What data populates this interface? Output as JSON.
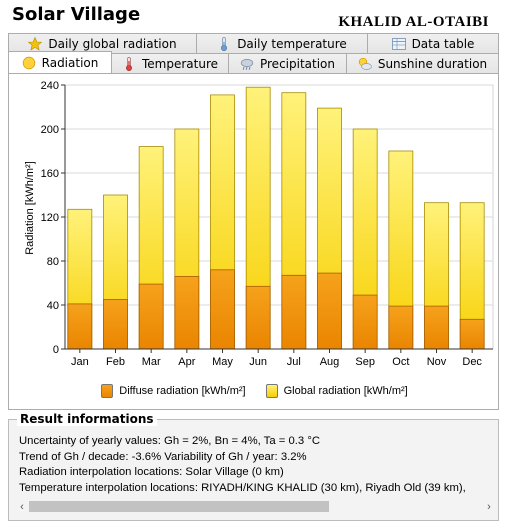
{
  "app": {
    "title": "Solar Village",
    "author": "KHALID AL-OTAIBI"
  },
  "tabs_row1": [
    {
      "label": "Daily global radiation",
      "icon": "star-icon"
    },
    {
      "label": "Daily temperature",
      "icon": "thermometer-icon"
    },
    {
      "label": "Data table",
      "icon": "table-icon"
    }
  ],
  "tabs_row2": [
    {
      "label": "Radiation",
      "icon": "sun-icon",
      "active": true
    },
    {
      "label": "Temperature",
      "icon": "thermometer-icon"
    },
    {
      "label": "Precipitation",
      "icon": "cloud-rain-icon"
    },
    {
      "label": "Sunshine duration",
      "icon": "sun-cloud-icon"
    }
  ],
  "chart_data": {
    "type": "bar",
    "ylabel": "Radiation [kWh/m²]",
    "ylim": [
      0,
      240
    ],
    "yticks": [
      0,
      40,
      80,
      120,
      160,
      200,
      240
    ],
    "grid": true,
    "legend_placement": "bottom",
    "categories": [
      "Jan",
      "Feb",
      "Mar",
      "Apr",
      "May",
      "Jun",
      "Jul",
      "Aug",
      "Sep",
      "Oct",
      "Nov",
      "Dec"
    ],
    "series": [
      {
        "name": "Diffuse radiation [kWh/m²]",
        "color": "#f08c00",
        "values": [
          41,
          45,
          59,
          66,
          72,
          57,
          67,
          69,
          49,
          39,
          39,
          27
        ]
      },
      {
        "name": "Global radiation [kWh/m²]",
        "color": "#ffe400",
        "values": [
          127,
          140,
          184,
          200,
          231,
          238,
          233,
          219,
          200,
          180,
          133,
          133
        ]
      }
    ]
  },
  "result": {
    "title": "Result informations",
    "lines": [
      "Uncertainty of yearly values: Gh = 2%, Bn = 4%, Ta = 0.3 °C",
      "Trend of Gh / decade: -3.6%   Variability of Gh / year: 3.2%",
      "Radiation interpolation locations: Solar Village (0 km)",
      "Temperature interpolation locations: RIYADH/KING KHALID (30 km), Riyadh Old (39 km),"
    ]
  },
  "scroll": {
    "left_arrow": "‹",
    "right_arrow": "›"
  }
}
